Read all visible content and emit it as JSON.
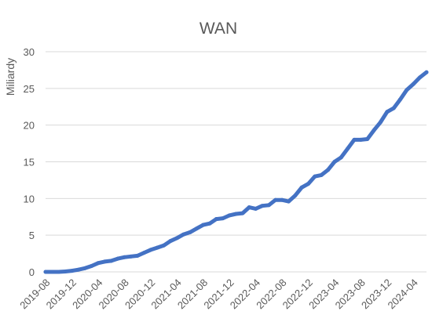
{
  "chart_data": {
    "type": "line",
    "title": "WAN",
    "xlabel": "",
    "ylabel": "Miliardy",
    "ylim": [
      0,
      30
    ],
    "yticks": [
      0,
      5,
      10,
      15,
      20,
      25,
      30
    ],
    "grid": true,
    "legend": "none",
    "x_tick_labels": [
      "2019-08",
      "2019-12",
      "2020-04",
      "2020-08",
      "2020-12",
      "2021-04",
      "2021-08",
      "2021-12",
      "2022-04",
      "2022-08",
      "2022-12",
      "2023-04",
      "2023-08",
      "2023-12",
      "2024-04"
    ],
    "colors": {
      "series": "#4472c4",
      "grid": "#d9d9d9",
      "text": "#595959"
    },
    "series": [
      {
        "x": [
          "2019-08",
          "2019-09",
          "2019-10",
          "2019-11",
          "2019-12",
          "2020-01",
          "2020-02",
          "2020-03",
          "2020-04",
          "2020-05",
          "2020-06",
          "2020-07",
          "2020-08",
          "2020-09",
          "2020-10",
          "2020-11",
          "2020-12",
          "2021-01",
          "2021-02",
          "2021-03",
          "2021-04",
          "2021-05",
          "2021-06",
          "2021-07",
          "2021-08",
          "2021-09",
          "2021-10",
          "2021-11",
          "2021-12",
          "2022-01",
          "2022-02",
          "2022-03",
          "2022-04",
          "2022-05",
          "2022-06",
          "2022-07",
          "2022-08",
          "2022-09",
          "2022-10",
          "2022-11",
          "2022-12",
          "2023-01",
          "2023-02",
          "2023-03",
          "2023-04",
          "2023-05",
          "2023-06",
          "2023-07",
          "2023-08",
          "2023-09",
          "2023-10",
          "2023-11",
          "2023-12",
          "2024-01",
          "2024-02",
          "2024-03",
          "2024-04",
          "2024-05",
          "2024-06"
        ],
        "values": [
          0.0,
          0.0,
          0.0,
          0.05,
          0.15,
          0.3,
          0.5,
          0.8,
          1.2,
          1.4,
          1.5,
          1.8,
          2.0,
          2.1,
          2.2,
          2.6,
          3.0,
          3.3,
          3.6,
          4.2,
          4.6,
          5.1,
          5.4,
          5.9,
          6.4,
          6.6,
          7.2,
          7.3,
          7.7,
          7.9,
          8.0,
          8.8,
          8.6,
          9.0,
          9.1,
          9.8,
          9.8,
          9.6,
          10.4,
          11.5,
          12.0,
          13.0,
          13.2,
          13.9,
          15.0,
          15.6,
          16.8,
          18.0,
          18.0,
          18.1,
          19.3,
          20.4,
          21.8,
          22.3,
          23.5,
          24.8,
          25.6,
          26.5,
          27.2
        ]
      }
    ]
  }
}
